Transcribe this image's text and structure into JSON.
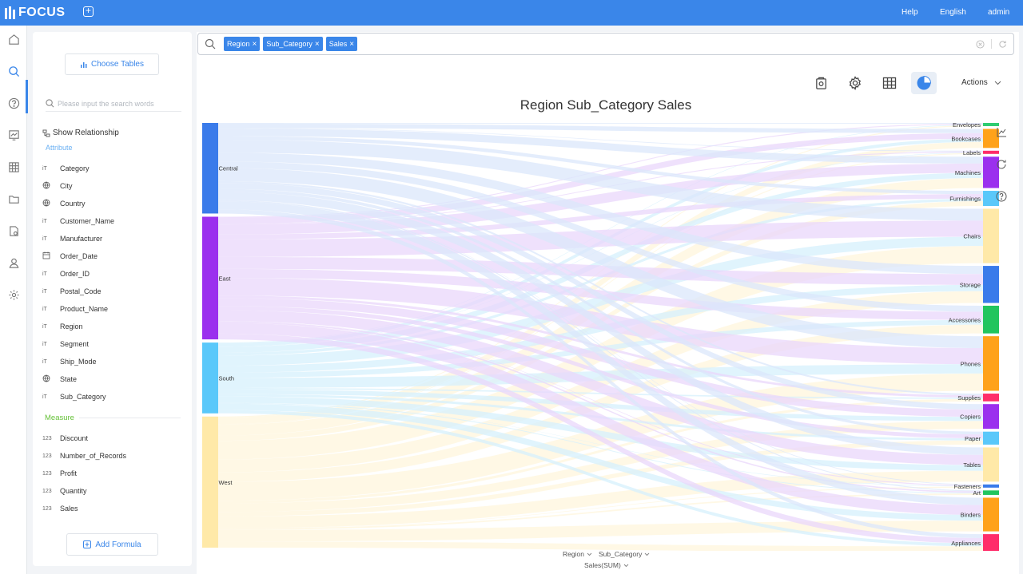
{
  "app": {
    "logo_text": "FOCUS",
    "brand_color": "#3a86e9",
    "new_tab_icon": "plus-square-icon",
    "help_label": "Help",
    "language_label": "English",
    "user_label": "admin"
  },
  "rail": {
    "icons": [
      "home-icon",
      "search-icon",
      "help-circle-icon",
      "dashboard-icon",
      "table-icon",
      "folder-icon",
      "settings-file-icon",
      "user-icon",
      "gear-icon"
    ],
    "active": "search-icon"
  },
  "left_panel": {
    "choose_tables_label": "Choose Tables",
    "search_placeholder": "Please input the search words",
    "show_relationship_label": "Show Relationship",
    "attribute_heading": "Attribute",
    "attributes": [
      {
        "type": "text",
        "name": "Category"
      },
      {
        "type": "geo",
        "name": "City"
      },
      {
        "type": "geo",
        "name": "Country"
      },
      {
        "type": "text",
        "name": "Customer_Name"
      },
      {
        "type": "text",
        "name": "Manufacturer"
      },
      {
        "type": "date",
        "name": "Order_Date"
      },
      {
        "type": "text",
        "name": "Order_ID"
      },
      {
        "type": "text",
        "name": "Postal_Code"
      },
      {
        "type": "text",
        "name": "Product_Name"
      },
      {
        "type": "text",
        "name": "Region"
      },
      {
        "type": "text",
        "name": "Segment"
      },
      {
        "type": "text",
        "name": "Ship_Mode"
      },
      {
        "type": "geo",
        "name": "State"
      },
      {
        "type": "text",
        "name": "Sub_Category"
      }
    ],
    "measure_heading": "Measure",
    "measures": [
      {
        "type_label": "123",
        "name": "Discount"
      },
      {
        "type_label": "123",
        "name": "Number_of_Records"
      },
      {
        "type_label": "123",
        "name": "Profit"
      },
      {
        "type_label": "123",
        "name": "Quantity"
      },
      {
        "type_label": "123",
        "name": "Sales"
      }
    ],
    "add_formula_label": "Add Formula"
  },
  "search_bar": {
    "chips": [
      "Region",
      "Sub_Category",
      "Sales"
    ]
  },
  "toolbar": {
    "actions_label": "Actions",
    "icons": [
      "report-icon",
      "settings-icon",
      "table-view-icon",
      "chart-view-icon"
    ],
    "active_icon": "chart-view-icon"
  },
  "chart_data": {
    "type": "sankey",
    "title": "Region Sub_Category Sales",
    "sources": [
      {
        "name": "Central",
        "value": 501240,
        "color": "#3a7bea"
      },
      {
        "name": "East",
        "value": 678781,
        "color": "#9b30ee"
      },
      {
        "name": "South",
        "value": 391722,
        "color": "#5ac8fa"
      },
      {
        "name": "West",
        "value": 725458,
        "color": "#ffe9a8"
      }
    ],
    "targets": [
      {
        "name": "Envelopes",
        "value": 16476,
        "color": "#2ecc71"
      },
      {
        "name": "Bookcases",
        "value": 114880,
        "color": "#ffa21a"
      },
      {
        "name": "Labels",
        "value": 12486,
        "color": "#ff2d6a"
      },
      {
        "name": "Machines",
        "value": 189239,
        "color": "#9b30ee"
      },
      {
        "name": "Furnishings",
        "value": 91705,
        "color": "#5ac8fa"
      },
      {
        "name": "Chairs",
        "value": 328449,
        "color": "#ffe9a8"
      },
      {
        "name": "Storage",
        "value": 223844,
        "color": "#3a7bea"
      },
      {
        "name": "Accessories",
        "value": 167380,
        "color": "#22c55e"
      },
      {
        "name": "Phones",
        "value": 330007,
        "color": "#ffa21a"
      },
      {
        "name": "Supplies",
        "value": 46674,
        "color": "#ff2d6a"
      },
      {
        "name": "Copiers",
        "value": 149528,
        "color": "#9b30ee"
      },
      {
        "name": "Paper",
        "value": 78479,
        "color": "#5ac8fa"
      },
      {
        "name": "Tables",
        "value": 206966,
        "color": "#ffe9a8"
      },
      {
        "name": "Fasteners",
        "value": 3024,
        "color": "#3a7bea"
      },
      {
        "name": "Art",
        "value": 27119,
        "color": "#22c55e"
      },
      {
        "name": "Binders",
        "value": 203413,
        "color": "#ffa21a"
      },
      {
        "name": "Appliances",
        "value": 107532,
        "color": "#ff2d6a"
      }
    ],
    "link_colors": [
      "#dbe7fb",
      "#ead7fb",
      "#d6f0fc",
      "#fff6dc"
    ]
  },
  "axis_controls": {
    "dimension_1": "Region",
    "dimension_2": "Sub_Category",
    "measure": "Sales(SUM)"
  }
}
